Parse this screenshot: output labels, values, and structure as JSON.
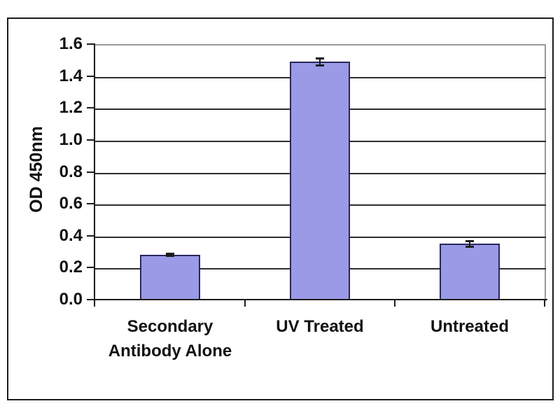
{
  "chart_data": {
    "type": "bar",
    "title": "",
    "xlabel": "",
    "ylabel": "OD 450nm",
    "categories": [
      "Secondary Antibody Alone",
      "UV Treated",
      "Untreated"
    ],
    "values": [
      0.28,
      1.49,
      0.35
    ],
    "error_bars": [
      0.005,
      0.02,
      0.015
    ],
    "ylim": [
      0,
      1.6
    ],
    "ytick_step": 0.2,
    "ytick_labels": [
      "0.0",
      "0.2",
      "0.4",
      "0.6",
      "0.8",
      "1.0",
      "1.2",
      "1.4",
      "1.6"
    ],
    "grid": true,
    "legend_position": "none",
    "colors": {
      "bar_fill": "#9a9ae6",
      "bar_border": "#28285c",
      "gridline": "#2e2e2e",
      "axis": "#1d1d1d",
      "plot_border": "#999999",
      "frame_border": "#1c1c1c",
      "text": "#111111",
      "background": "#ffffff"
    }
  }
}
